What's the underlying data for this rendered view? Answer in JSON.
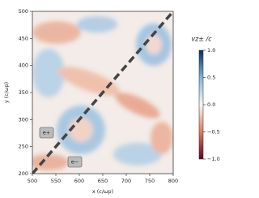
{
  "chart_data": {
    "type": "heatmap",
    "xlabel": "x (c/ωp)",
    "ylabel": "y (c/ωp)",
    "xlim": [
      500,
      800
    ],
    "xticks": [
      500,
      550,
      600,
      650,
      700,
      750,
      800
    ],
    "ylim": [
      200,
      500
    ],
    "yticks": [
      200,
      250,
      300,
      350,
      400,
      450,
      500
    ],
    "annotations": [
      "e+",
      "e−"
    ],
    "colorbar": {
      "label": "vz± /c",
      "lim": [
        -1,
        1
      ],
      "ticks": [
        {
          "value": 1,
          "label": "1.0"
        },
        {
          "value": 0.5,
          "label": "0.5"
        },
        {
          "value": 0,
          "label": "0.0"
        },
        {
          "value": -0.5,
          "label": "−0.5"
        },
        {
          "value": -1,
          "label": "−1.0"
        }
      ]
    }
  }
}
